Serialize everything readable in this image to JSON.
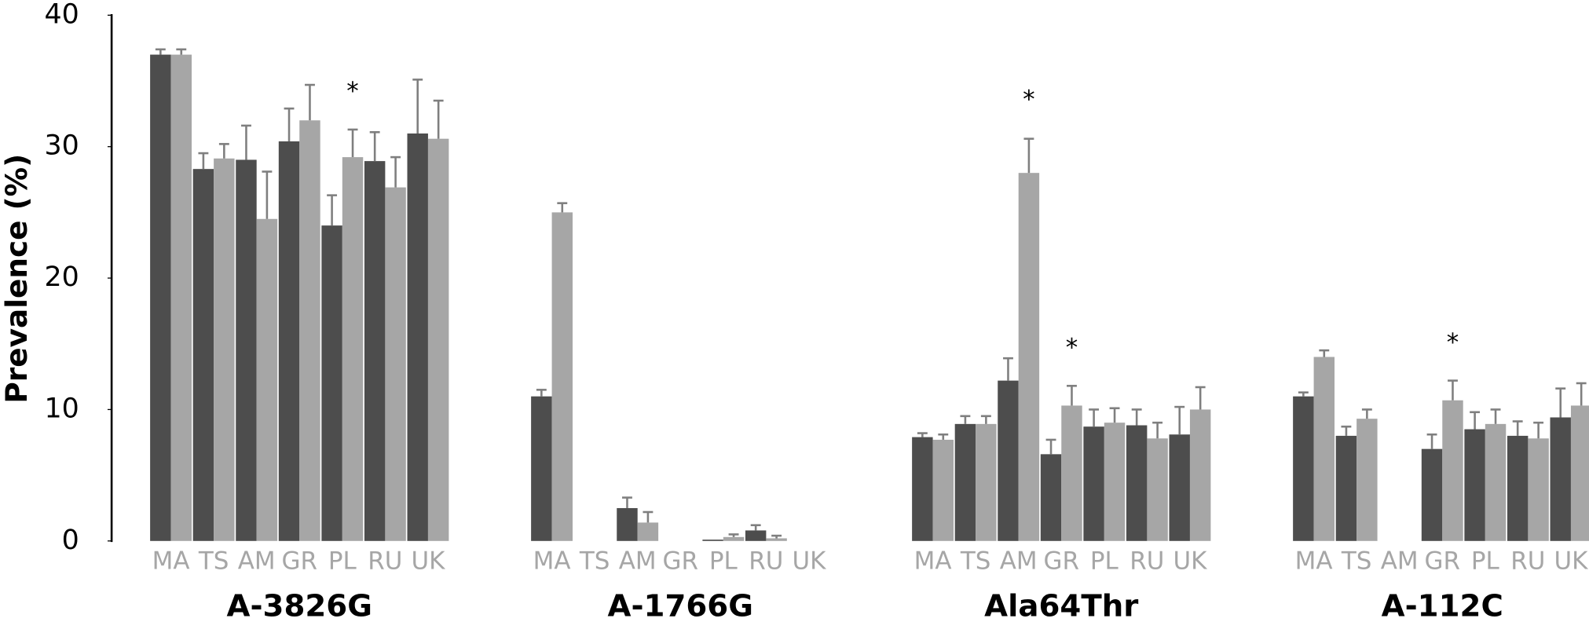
{
  "chart_data": {
    "type": "bar",
    "y_label": "Prevalence (%)",
    "ylim": [
      0,
      40
    ],
    "yticks": [
      0,
      10,
      20,
      30,
      40
    ],
    "colors": [
      "#4d4d4d",
      "#a6a6a6"
    ],
    "error_color": "#7f7f7f",
    "categories": [
      "MA",
      "TS",
      "AM",
      "GR",
      "PL",
      "RU",
      "UK"
    ],
    "groups": [
      {
        "label": "A-3826G",
        "series": [
          {
            "values": [
              37.0,
              28.3,
              29.0,
              30.4,
              24.0,
              28.9,
              31.0
            ],
            "errors": [
              0.4,
              1.2,
              2.6,
              2.5,
              2.3,
              2.2,
              4.1
            ]
          },
          {
            "values": [
              37.0,
              29.1,
              24.5,
              32.0,
              29.2,
              26.9,
              30.6
            ],
            "errors": [
              0.4,
              1.1,
              3.6,
              2.7,
              2.1,
              2.3,
              2.9
            ]
          }
        ]
      },
      {
        "label": "A-1766G",
        "series": [
          {
            "values": [
              11.0,
              0,
              2.5,
              0,
              0.1,
              0.8,
              0
            ],
            "errors": [
              0.5,
              0,
              0.8,
              0,
              0,
              0.4,
              0
            ]
          },
          {
            "values": [
              25.0,
              0,
              1.4,
              0,
              0.3,
              0.2,
              0
            ],
            "errors": [
              0.7,
              0,
              0.8,
              0,
              0.2,
              0.2,
              0
            ]
          }
        ]
      },
      {
        "label": "Ala64Thr",
        "series": [
          {
            "values": [
              7.9,
              8.9,
              12.2,
              6.6,
              8.7,
              8.8,
              8.1
            ],
            "errors": [
              0.3,
              0.6,
              1.7,
              1.1,
              1.3,
              1.2,
              2.1
            ]
          },
          {
            "values": [
              7.7,
              8.9,
              28.0,
              10.3,
              9.0,
              7.8,
              10.0
            ],
            "errors": [
              0.4,
              0.6,
              2.6,
              1.5,
              1.1,
              1.2,
              1.7
            ]
          }
        ]
      },
      {
        "label": "A-112C",
        "series": [
          {
            "values": [
              11.0,
              8.0,
              0,
              7.0,
              8.5,
              8.0,
              9.4
            ],
            "errors": [
              0.3,
              0.7,
              0,
              1.1,
              1.3,
              1.1,
              2.2
            ]
          },
          {
            "values": [
              14.0,
              9.3,
              0,
              10.7,
              8.9,
              7.8,
              10.3
            ],
            "errors": [
              0.5,
              0.7,
              0,
              1.5,
              1.1,
              1.2,
              1.7
            ]
          }
        ]
      }
    ],
    "annotations": [
      {
        "text": "*",
        "group": 0,
        "category": 4,
        "series": 1,
        "y": 34.4
      },
      {
        "text": "*",
        "group": 2,
        "category": 2,
        "series": 1,
        "y": 33.8
      },
      {
        "text": "*",
        "group": 2,
        "category": 3,
        "series": 1,
        "y": 14.9
      },
      {
        "text": "*",
        "group": 3,
        "category": 3,
        "series": 1,
        "y": 15.3
      }
    ]
  }
}
